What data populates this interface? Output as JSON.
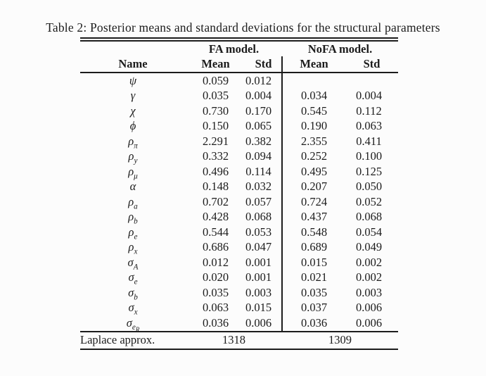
{
  "page": {
    "background": "#fcfcfc",
    "text_color": "#1c1c1c"
  },
  "table": {
    "caption": "Table 2: Posterior means and standard deviations for the structural parameters",
    "group_headers": [
      {
        "label": "FA model."
      },
      {
        "label": "NoFA model."
      }
    ],
    "column_headers": [
      "Name",
      "Mean",
      "Std",
      "Mean",
      "Std"
    ],
    "rows": [
      {
        "name": {
          "base": "ψ"
        },
        "fa_mean": "0.059",
        "fa_std": "0.012",
        "nofa_mean": "",
        "nofa_std": ""
      },
      {
        "name": {
          "base": "γ"
        },
        "fa_mean": "0.035",
        "fa_std": "0.004",
        "nofa_mean": "0.034",
        "nofa_std": "0.004"
      },
      {
        "name": {
          "base": "χ"
        },
        "fa_mean": "0.730",
        "fa_std": "0.170",
        "nofa_mean": "0.545",
        "nofa_std": "0.112"
      },
      {
        "name": {
          "base": "ϕ"
        },
        "fa_mean": "0.150",
        "fa_std": "0.065",
        "nofa_mean": "0.190",
        "nofa_std": "0.063"
      },
      {
        "name": {
          "base": "ρ",
          "sub": "π"
        },
        "fa_mean": "2.291",
        "fa_std": "0.382",
        "nofa_mean": "2.355",
        "nofa_std": "0.411"
      },
      {
        "name": {
          "base": "ρ",
          "sub": "y"
        },
        "fa_mean": "0.332",
        "fa_std": "0.094",
        "nofa_mean": "0.252",
        "nofa_std": "0.100"
      },
      {
        "name": {
          "base": "ρ",
          "sub": "μ"
        },
        "fa_mean": "0.496",
        "fa_std": "0.114",
        "nofa_mean": "0.495",
        "nofa_std": "0.125"
      },
      {
        "name": {
          "base": "α"
        },
        "fa_mean": "0.148",
        "fa_std": "0.032",
        "nofa_mean": "0.207",
        "nofa_std": "0.050"
      },
      {
        "name": {
          "base": "ρ",
          "sub": "a"
        },
        "fa_mean": "0.702",
        "fa_std": "0.057",
        "nofa_mean": "0.724",
        "nofa_std": "0.052"
      },
      {
        "name": {
          "base": "ρ",
          "sub": "b"
        },
        "fa_mean": "0.428",
        "fa_std": "0.068",
        "nofa_mean": "0.437",
        "nofa_std": "0.068"
      },
      {
        "name": {
          "base": "ρ",
          "sub": "e"
        },
        "fa_mean": "0.544",
        "fa_std": "0.053",
        "nofa_mean": "0.548",
        "nofa_std": "0.054"
      },
      {
        "name": {
          "base": "ρ",
          "sub": "x"
        },
        "fa_mean": "0.686",
        "fa_std": "0.047",
        "nofa_mean": "0.689",
        "nofa_std": "0.049"
      },
      {
        "name": {
          "base": "σ",
          "sub": "A"
        },
        "fa_mean": "0.012",
        "fa_std": "0.001",
        "nofa_mean": "0.015",
        "nofa_std": "0.002"
      },
      {
        "name": {
          "base": "σ",
          "sub": "e"
        },
        "fa_mean": "0.020",
        "fa_std": "0.001",
        "nofa_mean": "0.021",
        "nofa_std": "0.002"
      },
      {
        "name": {
          "base": "σ",
          "sub": "b"
        },
        "fa_mean": "0.035",
        "fa_std": "0.003",
        "nofa_mean": "0.035",
        "nofa_std": "0.003"
      },
      {
        "name": {
          "base": "σ",
          "sub": "x"
        },
        "fa_mean": "0.063",
        "fa_std": "0.015",
        "nofa_mean": "0.037",
        "nofa_std": "0.006"
      },
      {
        "name": {
          "base": "σ",
          "sub": "e",
          "subsub": "R"
        },
        "fa_mean": "0.036",
        "fa_std": "0.006",
        "nofa_mean": "0.036",
        "nofa_std": "0.006"
      }
    ],
    "footer": {
      "label": "Laplace approx.",
      "fa_value": "1318",
      "nofa_value": "1309"
    }
  }
}
